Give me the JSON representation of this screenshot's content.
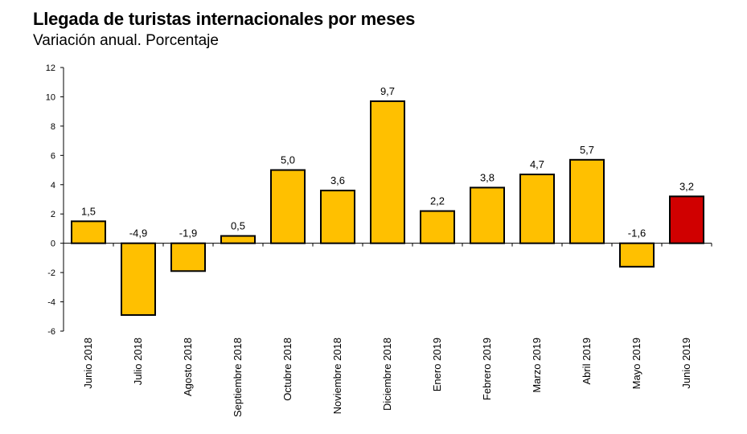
{
  "header": {
    "title": "Llegada de turistas internacionales por meses",
    "subtitle": "Variación anual. Porcentaje"
  },
  "chart_data": {
    "type": "bar",
    "title": "Llegada de turistas internacionales por meses",
    "subtitle": "Variación anual. Porcentaje",
    "xlabel": "",
    "ylabel": "",
    "ylim": [
      -6,
      12
    ],
    "yticks": [
      12,
      10,
      8,
      6,
      4,
      2,
      0,
      -2,
      -4,
      -6
    ],
    "grid": false,
    "categories": [
      "Junio 2018",
      "Julio 2018",
      "Agosto 2018",
      "Septiembre 2018",
      "Octubre 2018",
      "Noviembre 2018",
      "Diciembre 2018",
      "Enero 2019",
      "Febrero 2019",
      "Marzo 2019",
      "Abril 2019",
      "Mayo 2019",
      "Junio 2019"
    ],
    "values": [
      1.5,
      -4.9,
      -1.9,
      0.5,
      5.0,
      3.6,
      9.7,
      2.2,
      3.8,
      4.7,
      5.7,
      -1.6,
      3.2
    ],
    "data_labels": [
      "1,5",
      "-4,9",
      "-1,9",
      "0,5",
      "5,0",
      "3,6",
      "9,7",
      "2,2",
      "3,8",
      "4,7",
      "5,7",
      "-1,6",
      "3,2"
    ],
    "colors": {
      "bar": "#FFC000",
      "highlight": "#D00000",
      "outline": "#000000"
    },
    "highlight_index": 12
  }
}
